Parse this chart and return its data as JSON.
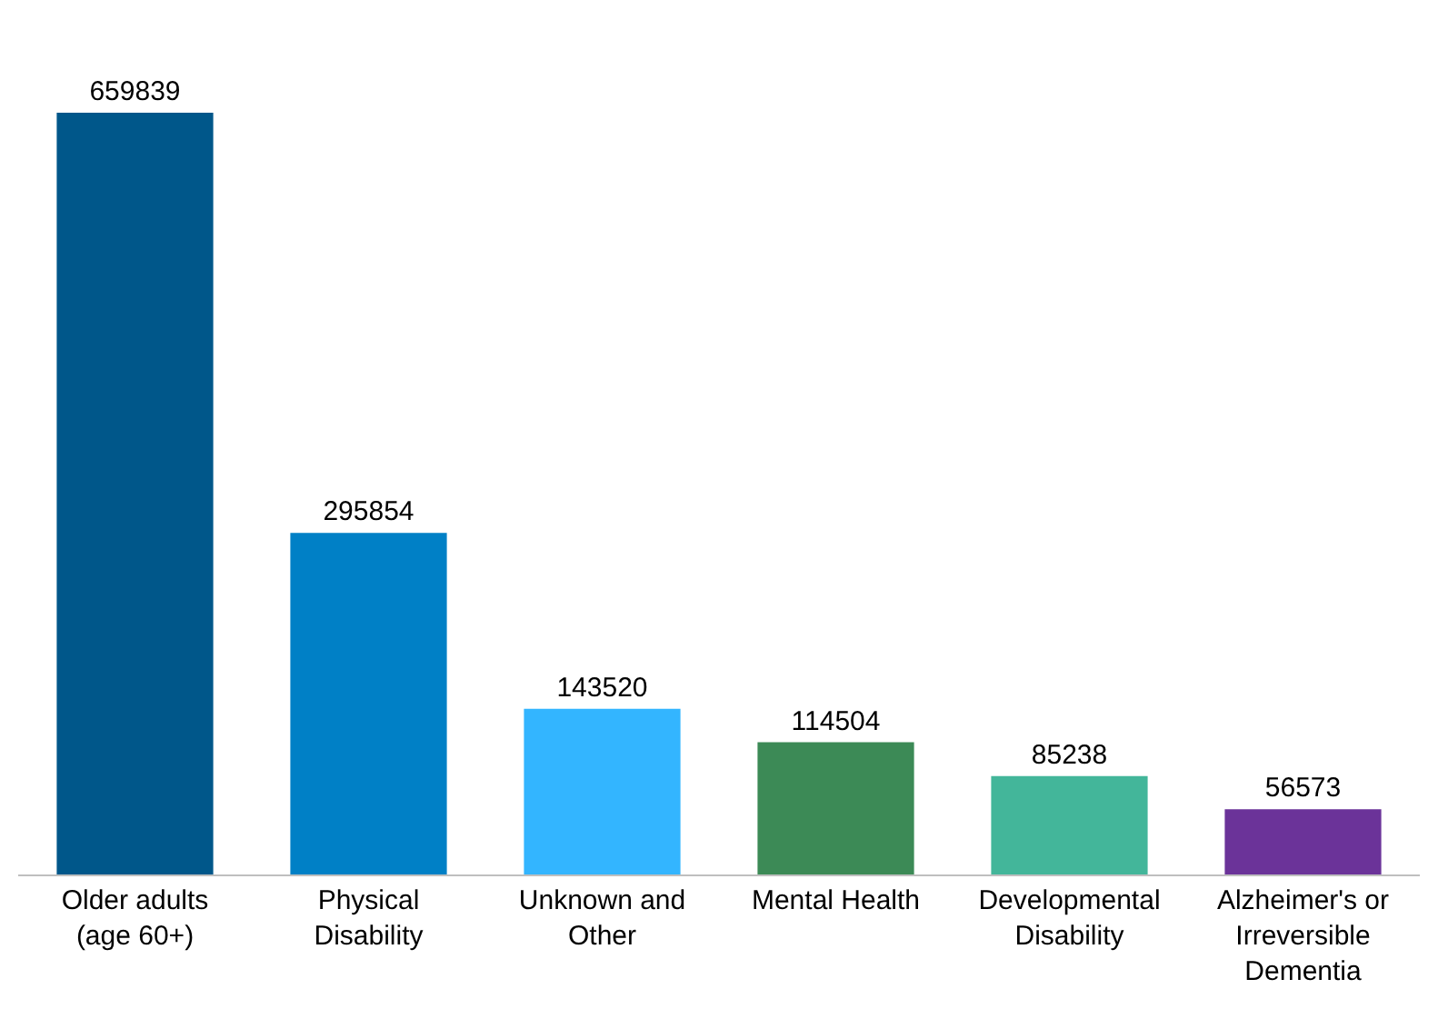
{
  "chart_data": {
    "type": "bar",
    "categories": [
      "Older adults (age 60+)",
      "Physical Disability",
      "Unknown and Other",
      "Mental Health",
      "Developmental Disability",
      "Alzheimer's or Irreversible Dementia"
    ],
    "values": [
      659839,
      295854,
      143520,
      114504,
      85238,
      56573
    ],
    "colors": [
      "#00578a",
      "#0080c6",
      "#33b5ff",
      "#3c8a56",
      "#43b69a",
      "#6b3399"
    ],
    "data_labels": true
  }
}
